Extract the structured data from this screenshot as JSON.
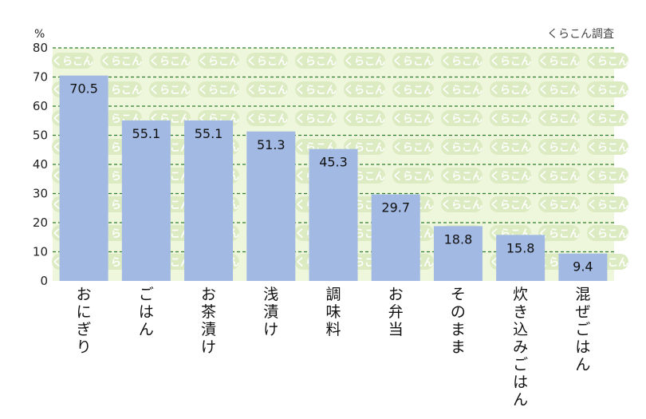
{
  "source_note": "くらこん調査",
  "watermark_text": "くらこん",
  "colors": {
    "bar": "#a2b9e3",
    "plot_bg": "#eef6dc",
    "grid": "#2e7d2e",
    "watermark": "#dcebc2"
  },
  "chart_data": {
    "type": "bar",
    "ylabel": "%",
    "ylim": [
      0,
      80
    ],
    "yticks": [
      0,
      10,
      20,
      30,
      40,
      50,
      60,
      70,
      80
    ],
    "grid": true,
    "categories": [
      "おにぎり",
      "ごはん",
      "お茶漬け",
      "浅漬け",
      "調味料",
      "お弁当",
      "そのまま",
      "炊き込みごはん",
      "混ぜごはん"
    ],
    "values": [
      70.5,
      55.1,
      55.1,
      51.3,
      45.3,
      29.7,
      18.8,
      15.8,
      9.4
    ],
    "value_labels": [
      "70.5",
      "55.1",
      "55.1",
      "51.3",
      "45.3",
      "29.7",
      "18.8",
      "15.8",
      "9.4"
    ]
  }
}
